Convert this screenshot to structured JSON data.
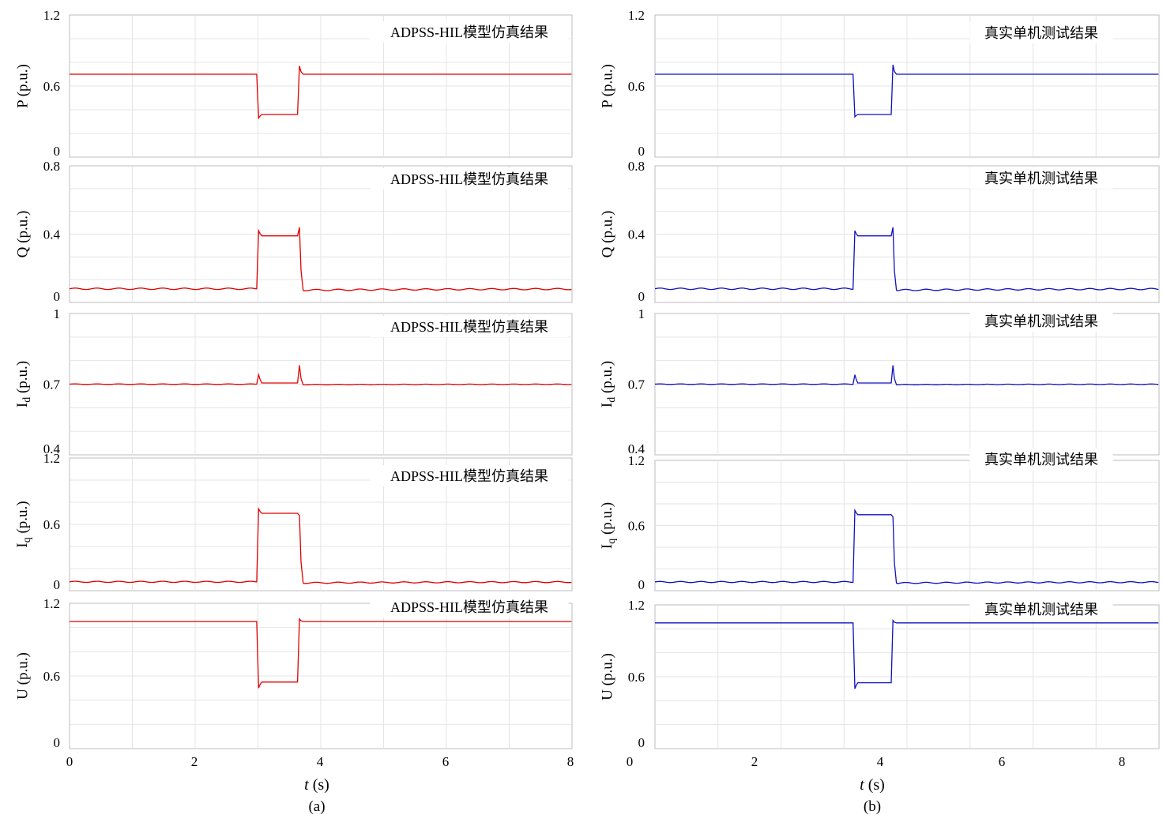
{
  "chart_data": [
    {
      "type": "line",
      "panel": "a",
      "caption": "(a)",
      "color": "#e00000",
      "annotation": "ADPSS-HIL模型仿真结果",
      "xlabel_italic": "t",
      "xlabel_unit": " (s)",
      "x_ticks": [
        "0",
        "2",
        "4",
        "6",
        "8"
      ],
      "xlim": [
        0,
        8
      ],
      "subplots": [
        {
          "key": "P",
          "ylabel": "P (p.u.)",
          "ylim": [
            0,
            1.2
          ],
          "y_ticks": [
            0,
            0.6,
            1.2
          ],
          "y_tick_labels": [
            "0",
            "0.6",
            "1.2"
          ],
          "series": {
            "pre": 0.7,
            "sag": 0.36,
            "post": 0.7,
            "t_fault": 3.0,
            "t_clear": 3.65,
            "spike_start": 0.33,
            "spike_end": 0.77,
            "ripple": 0
          }
        },
        {
          "key": "Q",
          "ylabel": "Q (p.u.)",
          "ylim": [
            0,
            0.8
          ],
          "y_ticks": [
            0,
            0.4,
            0.8
          ],
          "y_tick_labels": [
            "0",
            "0.4",
            "0.8"
          ],
          "series": {
            "pre": 0.08,
            "sag": 0.39,
            "post": 0.08,
            "t_fault": 3.0,
            "t_clear": 3.65,
            "spike_start": 0.42,
            "spike_end": 0.44,
            "ripple": 0.004
          }
        },
        {
          "key": "Id",
          "ylabel": "I",
          "ylabel_sub": "d",
          "ylabel_suffix": " (p.u.)",
          "ylim": [
            0.4,
            1.0
          ],
          "y_ticks": [
            0.4,
            0.7,
            1.0
          ],
          "y_tick_labels": [
            "0.4",
            "0.7",
            "1"
          ],
          "series": {
            "pre": 0.7,
            "sag": 0.705,
            "post": 0.7,
            "t_fault": 3.0,
            "t_clear": 3.65,
            "spike_start": 0.74,
            "spike_end": 0.78,
            "ripple": 0.001
          }
        },
        {
          "key": "Iq",
          "ylabel": "I",
          "ylabel_sub": "q",
          "ylabel_suffix": " (p.u.)",
          "ylim": [
            0,
            1.2
          ],
          "y_ticks": [
            0,
            0.6,
            1.2
          ],
          "y_tick_labels": [
            "0",
            "0.6",
            "1.2"
          ],
          "series": {
            "pre": 0.08,
            "sag": 0.7,
            "post": 0.08,
            "t_fault": 3.0,
            "t_clear": 3.65,
            "spike_start": 0.74,
            "spike_end": 0.68,
            "ripple": 0.005
          }
        },
        {
          "key": "U",
          "ylabel": "U (p.u.)",
          "ylim": [
            0,
            1.2
          ],
          "y_ticks": [
            0,
            0.6,
            1.2
          ],
          "y_tick_labels": [
            "0",
            "0.6",
            "1.2"
          ],
          "series": {
            "pre": 1.05,
            "sag": 0.55,
            "post": 1.05,
            "t_fault": 3.0,
            "t_clear": 3.65,
            "spike_start": 0.5,
            "spike_end": 1.07,
            "ripple": 0
          }
        }
      ]
    },
    {
      "type": "line",
      "panel": "b",
      "caption": "(b)",
      "color": "#1010c0",
      "annotation": "真实单机测试结果",
      "xlabel_italic": "t",
      "xlabel_unit": " (s)",
      "x_ticks": [
        "0",
        "2",
        "4",
        "6",
        "8"
      ],
      "xlim": [
        0,
        8.6
      ],
      "subplots": [
        {
          "key": "P",
          "ylabel": "P (p.u.)",
          "ylim": [
            0,
            1.2
          ],
          "y_ticks": [
            0,
            0.6,
            1.2
          ],
          "y_tick_labels": [
            "0",
            "0.6",
            "1.2"
          ],
          "series": {
            "pre": 0.7,
            "sag": 0.36,
            "post": 0.7,
            "t_fault": 3.4,
            "t_clear": 4.05,
            "spike_start": 0.34,
            "spike_end": 0.78,
            "ripple": 0
          }
        },
        {
          "key": "Q",
          "ylabel": "Q (p.u.)",
          "ylim": [
            0,
            0.8
          ],
          "y_ticks": [
            0,
            0.4,
            0.8
          ],
          "y_tick_labels": [
            "0",
            "0.4",
            "0.8"
          ],
          "series": {
            "pre": 0.08,
            "sag": 0.39,
            "post": 0.08,
            "t_fault": 3.4,
            "t_clear": 4.05,
            "spike_start": 0.42,
            "spike_end": 0.44,
            "ripple": 0.004
          }
        },
        {
          "key": "Id",
          "ylabel": "I",
          "ylabel_sub": "d",
          "ylabel_suffix": " (p.u.)",
          "ylim": [
            0.4,
            1.0
          ],
          "y_ticks": [
            0.4,
            0.7,
            1.0
          ],
          "y_tick_labels": [
            "0.4",
            "0.7",
            "1"
          ],
          "series": {
            "pre": 0.7,
            "sag": 0.705,
            "post": 0.7,
            "t_fault": 3.4,
            "t_clear": 4.05,
            "spike_start": 0.74,
            "spike_end": 0.78,
            "ripple": 0.001
          }
        },
        {
          "key": "Iq",
          "ylabel": "I",
          "ylabel_sub": "q",
          "ylabel_suffix": " (p.u.)",
          "ylim": [
            0,
            1.2
          ],
          "y_ticks": [
            0,
            0.6,
            1.2
          ],
          "y_tick_labels": [
            "0",
            "0.6",
            "1.2"
          ],
          "series": {
            "pre": 0.08,
            "sag": 0.7,
            "post": 0.08,
            "t_fault": 3.4,
            "t_clear": 4.05,
            "spike_start": 0.74,
            "spike_end": 0.68,
            "ripple": 0.005
          }
        },
        {
          "key": "U",
          "ylabel": "U (p.u.)",
          "ylim": [
            0,
            1.2
          ],
          "y_ticks": [
            0,
            0.6,
            1.2
          ],
          "y_tick_labels": [
            "0",
            "0.6",
            "1.2"
          ],
          "series": {
            "pre": 1.05,
            "sag": 0.55,
            "post": 1.05,
            "t_fault": 3.4,
            "t_clear": 4.05,
            "spike_start": 0.5,
            "spike_end": 1.07,
            "ripple": 0
          }
        }
      ]
    }
  ]
}
